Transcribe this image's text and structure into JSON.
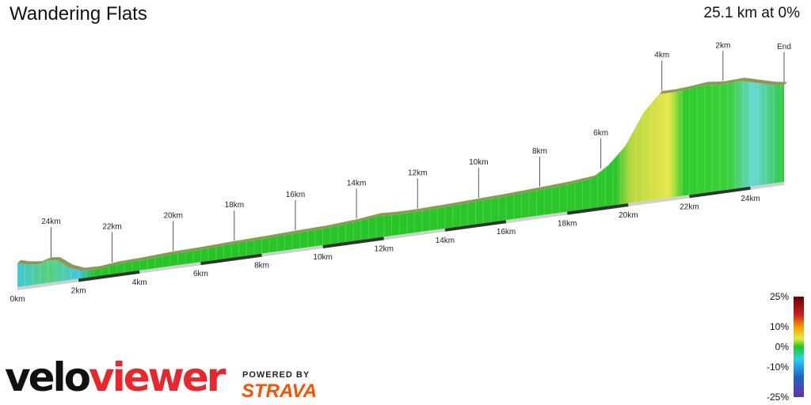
{
  "header": {
    "title": "Wandering Flats",
    "summary": "25.1 km at 0%"
  },
  "branding": {
    "logo_part1": "velo",
    "logo_part2": "viewer",
    "powered_by": "POWERED BY",
    "strava": "STRAVA",
    "logo_colors": {
      "velo": "#111111",
      "viewer": "#e8262d",
      "strava": "#fc5200"
    }
  },
  "chart_data": {
    "type": "area",
    "title": "Wandering Flats",
    "subtitle": "25.1 km at 0%",
    "distance_km": 25.1,
    "elevation_relative": [
      {
        "km": 0.0,
        "elev": 0.58
      },
      {
        "km": 0.3,
        "elev": 0.52
      },
      {
        "km": 0.7,
        "elev": 0.48
      },
      {
        "km": 1.0,
        "elev": 0.55
      },
      {
        "km": 1.3,
        "elev": 0.52
      },
      {
        "km": 1.7,
        "elev": 0.3
      },
      {
        "km": 2.1,
        "elev": 0.18
      },
      {
        "km": 2.6,
        "elev": 0.17
      },
      {
        "km": 3.2,
        "elev": 0.22
      },
      {
        "km": 4.0,
        "elev": 0.24
      },
      {
        "km": 5.0,
        "elev": 0.28
      },
      {
        "km": 6.0,
        "elev": 0.3
      },
      {
        "km": 7.0,
        "elev": 0.33
      },
      {
        "km": 8.0,
        "elev": 0.35
      },
      {
        "km": 9.0,
        "elev": 0.38
      },
      {
        "km": 10.0,
        "elev": 0.4
      },
      {
        "km": 11.0,
        "elev": 0.45
      },
      {
        "km": 11.8,
        "elev": 0.52
      },
      {
        "km": 12.3,
        "elev": 0.5
      },
      {
        "km": 13.0,
        "elev": 0.5
      },
      {
        "km": 14.0,
        "elev": 0.52
      },
      {
        "km": 15.0,
        "elev": 0.55
      },
      {
        "km": 16.0,
        "elev": 0.58
      },
      {
        "km": 17.0,
        "elev": 0.62
      },
      {
        "km": 18.0,
        "elev": 0.66
      },
      {
        "km": 18.8,
        "elev": 0.72
      },
      {
        "km": 19.3,
        "elev": 0.95
      },
      {
        "km": 19.9,
        "elev": 1.4
      },
      {
        "km": 20.5,
        "elev": 2.15
      },
      {
        "km": 21.0,
        "elev": 2.55
      },
      {
        "km": 21.5,
        "elev": 2.55
      },
      {
        "km": 22.0,
        "elev": 2.58
      },
      {
        "km": 22.5,
        "elev": 2.62
      },
      {
        "km": 23.0,
        "elev": 2.58
      },
      {
        "km": 23.7,
        "elev": 2.6
      },
      {
        "km": 24.2,
        "elev": 2.5
      },
      {
        "km": 24.7,
        "elev": 2.4
      },
      {
        "km": 25.1,
        "elev": 2.35
      }
    ],
    "bottom_ticks": [
      "0km",
      "2km",
      "4km",
      "6km",
      "8km",
      "10km",
      "12km",
      "14km",
      "16km",
      "18km",
      "20km",
      "22km",
      "24km"
    ],
    "top_ticks": [
      {
        "label": "24km",
        "at_km": 1.1
      },
      {
        "label": "22km",
        "at_km": 3.1
      },
      {
        "label": "20km",
        "at_km": 5.1
      },
      {
        "label": "18km",
        "at_km": 7.1
      },
      {
        "label": "16km",
        "at_km": 9.1
      },
      {
        "label": "14km",
        "at_km": 11.1
      },
      {
        "label": "12km",
        "at_km": 13.1
      },
      {
        "label": "10km",
        "at_km": 15.1
      },
      {
        "label": "8km",
        "at_km": 17.1
      },
      {
        "label": "6km",
        "at_km": 19.1
      },
      {
        "label": "4km",
        "at_km": 21.1
      },
      {
        "label": "2km",
        "at_km": 23.1
      },
      {
        "label": "End",
        "at_km": 25.1
      }
    ],
    "gradient_legend": {
      "labels": [
        "25%",
        "10%",
        "0%",
        "-10%",
        "-25%"
      ],
      "values": [
        25,
        10,
        0,
        -10,
        -25
      ],
      "colors": [
        "#6e0000",
        "#c81e1e",
        "#f0a000",
        "#e8e840",
        "#1ec81e",
        "#28d2f0",
        "#1e64c8",
        "#6432a0"
      ]
    }
  }
}
